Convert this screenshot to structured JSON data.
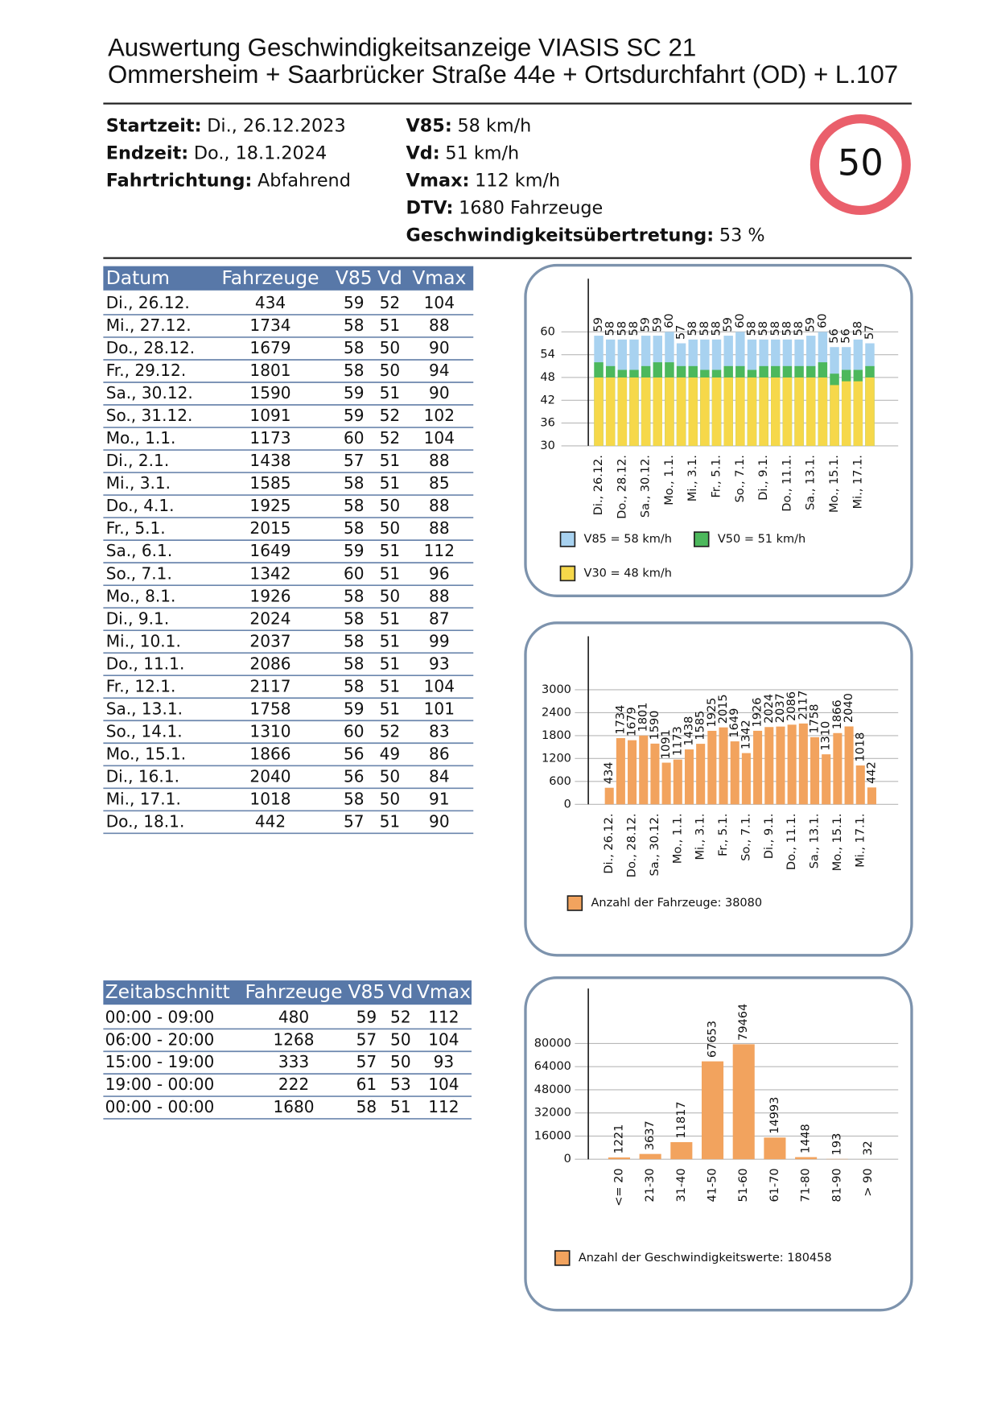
{
  "header": {
    "title": [
      "Auswertung Geschwindigkeitsanzeige VIASIS SC 21",
      "Ommersheim + Saarbrücker Straße 44e + Ortsdurchfahrt (OD) + L.107"
    ]
  },
  "summary": {
    "left": [
      {
        "label": "Startzeit:",
        "value": "Di., 26.12.2023"
      },
      {
        "label": "Endzeit:",
        "value": "Do., 18.1.2024"
      },
      {
        "label": "Fahrtrichtung:",
        "value": "Abfahrend"
      }
    ],
    "right": [
      {
        "label": "V85:",
        "value": "58 km/h"
      },
      {
        "label": "Vd:",
        "value": "51 km/h"
      },
      {
        "label": "Vmax:",
        "value": "112 km/h"
      },
      {
        "label": "DTV:",
        "value": "1680 Fahrzeuge"
      },
      {
        "label": "Geschwindigkeitsübertretung:",
        "value": "53 %"
      }
    ]
  },
  "speed_sign": 50,
  "daily_table": {
    "columns": [
      "Datum",
      "Fahrzeuge",
      "V85",
      "Vd",
      "Vmax"
    ],
    "rows": [
      [
        "Di., 26.12.",
        434,
        59,
        52,
        104
      ],
      [
        "Mi., 27.12.",
        1734,
        58,
        51,
        88
      ],
      [
        "Do., 28.12.",
        1679,
        58,
        50,
        90
      ],
      [
        "Fr., 29.12.",
        1801,
        58,
        50,
        94
      ],
      [
        "Sa., 30.12.",
        1590,
        59,
        51,
        90
      ],
      [
        "So., 31.12.",
        1091,
        59,
        52,
        102
      ],
      [
        "Mo., 1.1.",
        1173,
        60,
        52,
        104
      ],
      [
        "Di., 2.1.",
        1438,
        57,
        51,
        88
      ],
      [
        "Mi., 3.1.",
        1585,
        58,
        51,
        85
      ],
      [
        "Do., 4.1.",
        1925,
        58,
        50,
        88
      ],
      [
        "Fr., 5.1.",
        2015,
        58,
        50,
        88
      ],
      [
        "Sa., 6.1.",
        1649,
        59,
        51,
        112
      ],
      [
        "So., 7.1.",
        1342,
        60,
        51,
        96
      ],
      [
        "Mo., 8.1.",
        1926,
        58,
        50,
        88
      ],
      [
        "Di., 9.1.",
        2024,
        58,
        51,
        87
      ],
      [
        "Mi., 10.1.",
        2037,
        58,
        51,
        99
      ],
      [
        "Do., 11.1.",
        2086,
        58,
        51,
        93
      ],
      [
        "Fr., 12.1.",
        2117,
        58,
        51,
        104
      ],
      [
        "Sa., 13.1.",
        1758,
        59,
        51,
        101
      ],
      [
        "So., 14.1.",
        1310,
        60,
        52,
        83
      ],
      [
        "Mo., 15.1.",
        1866,
        56,
        49,
        86
      ],
      [
        "Di., 16.1.",
        2040,
        56,
        50,
        84
      ],
      [
        "Mi., 17.1.",
        1018,
        58,
        50,
        91
      ],
      [
        "Do., 18.1.",
        442,
        57,
        51,
        90
      ]
    ]
  },
  "period_table": {
    "columns": [
      "Zeitabschnitt",
      "Fahrzeuge",
      "V85",
      "Vd",
      "Vmax"
    ],
    "rows": [
      [
        "00:00 - 09:00",
        480,
        59,
        52,
        112
      ],
      [
        "06:00 - 20:00",
        1268,
        57,
        50,
        104
      ],
      [
        "15:00 - 19:00",
        333,
        57,
        50,
        93
      ],
      [
        "19:00 - 00:00",
        222,
        61,
        53,
        104
      ],
      [
        "00:00 - 00:00",
        1680,
        58,
        51,
        112
      ]
    ]
  },
  "chart_data": [
    {
      "type": "bar",
      "categories": [
        "Di., 26.12.",
        null,
        "Do., 28.12.",
        null,
        "Sa., 30.12.",
        null,
        "Mo., 1.1.",
        null,
        "Mi., 3.1.",
        null,
        "Fr., 5.1.",
        null,
        "So., 7.1.",
        null,
        "Di., 9.1.",
        null,
        "Do., 11.1.",
        null,
        "Sa., 13.1.",
        null,
        "Mo., 15.1.",
        null,
        "Mi., 17.1.",
        null
      ],
      "series": [
        {
          "name": "V85 = 58 km/h",
          "color": "#a8d2f0",
          "values": [
            59,
            58,
            58,
            58,
            59,
            59,
            60,
            57,
            58,
            58,
            58,
            59,
            60,
            58,
            58,
            58,
            58,
            58,
            59,
            60,
            56,
            56,
            58,
            57
          ]
        },
        {
          "name": "V50 = 51 km/h",
          "color": "#4cb85c",
          "values": [
            52,
            51,
            50,
            50,
            51,
            52,
            52,
            51,
            51,
            50,
            50,
            51,
            51,
            50,
            51,
            51,
            51,
            51,
            51,
            52,
            49,
            50,
            50,
            51
          ]
        },
        {
          "name": "V30 = 48 km/h",
          "color": "#f6d84a",
          "values": [
            48,
            48,
            48,
            48,
            48,
            48,
            48,
            48,
            48,
            48,
            48,
            48,
            48,
            48,
            48,
            48,
            48,
            48,
            48,
            48,
            46,
            47,
            47,
            48
          ]
        }
      ],
      "ylim": [
        30,
        74
      ],
      "yticks": [
        30,
        36,
        42,
        48,
        54,
        60
      ],
      "grid": true
    },
    {
      "type": "bar",
      "categories": [
        "Di., 26.12.",
        null,
        "Do., 28.12.",
        null,
        "Sa., 30.12.",
        null,
        "Mo., 1.1.",
        null,
        "Mi., 3.1.",
        null,
        "Fr., 5.1.",
        null,
        "So., 7.1.",
        null,
        "Di., 9.1.",
        null,
        "Do., 11.1.",
        null,
        "Sa., 13.1.",
        null,
        "Mo., 15.1.",
        null,
        "Mi., 17.1.",
        null
      ],
      "series": [
        {
          "name": "Anzahl der Fahrzeuge: 38080",
          "color": "#f2a35e",
          "values": [
            434,
            1734,
            1679,
            1801,
            1590,
            1091,
            1173,
            1438,
            1585,
            1925,
            2015,
            1649,
            1342,
            1926,
            2024,
            2037,
            2086,
            2117,
            1758,
            1310,
            1866,
            2040,
            1018,
            442
          ]
        }
      ],
      "ylim": [
        0,
        4400
      ],
      "yticks": [
        0,
        600,
        1200,
        1800,
        2400,
        3000
      ],
      "grid": true
    },
    {
      "type": "bar",
      "categories": [
        "<= 20",
        "21-30",
        "31-40",
        "41-50",
        "51-60",
        "61-70",
        "71-80",
        "81-90",
        "> 90"
      ],
      "series": [
        {
          "name": "Anzahl der Geschwindigkeitswerte: 180458",
          "color": "#f2a35e",
          "values": [
            1221,
            3637,
            11817,
            67653,
            79464,
            14993,
            1448,
            193,
            32
          ]
        }
      ],
      "ylim": [
        0,
        118000
      ],
      "yticks": [
        0,
        16000,
        32000,
        48000,
        64000,
        80000
      ],
      "grid": true
    }
  ]
}
